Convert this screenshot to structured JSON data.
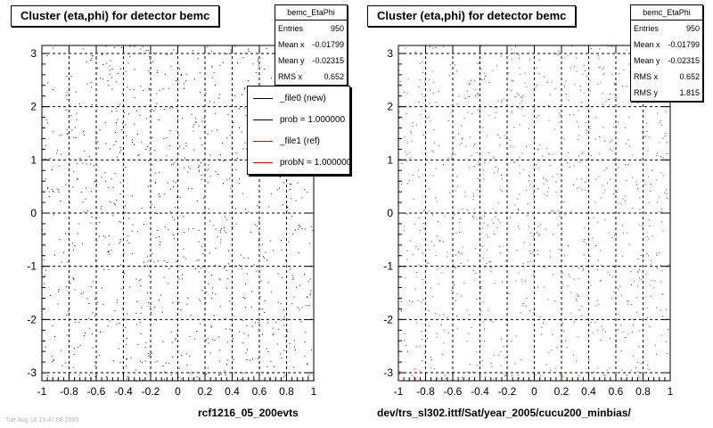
{
  "chart_data": [
    {
      "type": "scatter",
      "title": "Cluster (eta,phi) for detector bemc",
      "xlim": [
        -1,
        1
      ],
      "ylim": [
        -3.15,
        3.15
      ],
      "xticks": [
        "-1",
        "-0.8",
        "-0.6",
        "-0.4",
        "-0.2",
        "0",
        "0.2",
        "0.4",
        "0.6",
        "0.8",
        "1"
      ],
      "yticks": [
        "-3",
        "-2",
        "-1",
        "0",
        "1",
        "2",
        "3"
      ],
      "grid": true,
      "series": [
        {
          "name": "_file0 (new)",
          "color": "#000000",
          "count": 950
        }
      ],
      "stats": {
        "title": "bemc_EtaPhi",
        "rows": [
          {
            "label": "Entries",
            "value": "950"
          },
          {
            "label": "Mean x",
            "value": "-0.01799"
          },
          {
            "label": "Mean y",
            "value": "-0.02315"
          },
          {
            "label": "RMS x",
            "value": "0.652"
          }
        ]
      },
      "legend": {
        "placement": "top-right",
        "entries": [
          {
            "label": "_file0 (new)",
            "color": "#000000"
          },
          {
            "label": "prob = 1.000000",
            "color": "#000000"
          },
          {
            "label": "_file1 (ref)",
            "color": "#cc0000"
          },
          {
            "label": "probN = 1.000000",
            "color": "#cc0000"
          }
        ]
      },
      "caption": "rcf1216_05_200evts"
    },
    {
      "type": "scatter",
      "title": "Cluster (eta,phi) for detector bemc",
      "xlim": [
        -1,
        1
      ],
      "ylim": [
        -3.15,
        3.15
      ],
      "xticks": [
        "-1",
        "-0.8",
        "-0.6",
        "-0.4",
        "-0.2",
        "0",
        "0.2",
        "0.4",
        "0.6",
        "0.8",
        "1"
      ],
      "yticks": [
        "-3",
        "-2",
        "-1",
        "0",
        "1",
        "2",
        "3"
      ],
      "grid": true,
      "series": [
        {
          "name": "_file1 (ref)",
          "color": "#cc0000",
          "count": 950
        }
      ],
      "stats": {
        "title": "bemc_EtaPhi",
        "rows": [
          {
            "label": "Entries",
            "value": "950"
          },
          {
            "label": "Mean x",
            "value": "-0.01799"
          },
          {
            "label": "Mean y",
            "value": "-0.02315"
          },
          {
            "label": "RMS x",
            "value": "0.652"
          },
          {
            "label": "RMS y",
            "value": "1.815"
          }
        ]
      },
      "caption": "dev/trs_sl302.ittf/Sat/year_2005/cucu200_minbias/"
    }
  ],
  "footer_text": "Tue Aug 16 15:47:08 2005"
}
